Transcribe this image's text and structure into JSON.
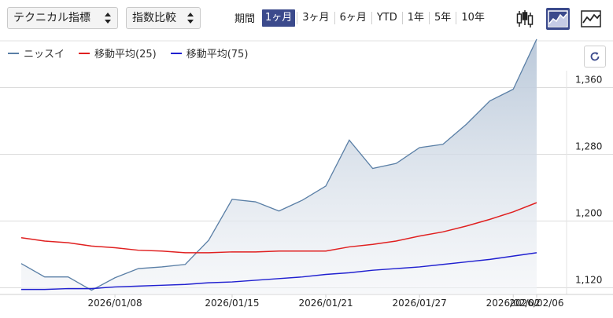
{
  "toolbar": {
    "technical_select": "テクニカル指標",
    "index_select": "指数比較",
    "period_label": "期間",
    "periods": [
      "1ヶ月",
      "3ヶ月",
      "6ヶ月",
      "YTD",
      "1年",
      "5年",
      "10年"
    ],
    "active_period": "1ヶ月",
    "chart_types": [
      "candlestick-icon",
      "area-chart-icon",
      "line-chart-icon"
    ],
    "active_chart_type": "area-chart-icon"
  },
  "legend": [
    {
      "name": "ニッスイ",
      "color": "#5a7fa6"
    },
    {
      "name": "移動平均(25)",
      "color": "#e02020"
    },
    {
      "name": "移動平均(75)",
      "color": "#2020d0"
    }
  ],
  "reload_icon": "refresh-icon",
  "chart_data": {
    "type": "area",
    "x_ticks": [
      "2026/01/08",
      "2026/01/15",
      "2026/01/21",
      "2026/01/27",
      "2026/02/02",
      "2026/02/06"
    ],
    "y_ticks": [
      "1,120",
      "1,200",
      "1,280",
      "1,360"
    ],
    "ylim": [
      1112,
      1416
    ],
    "grid": true,
    "series": [
      {
        "name": "ニッスイ",
        "color": "#5a7fa6",
        "values": [
          1149,
          1133,
          1133,
          1117,
          1132,
          1143,
          1145,
          1148,
          1177,
          1226,
          1223,
          1212,
          1225,
          1242,
          1297,
          1263,
          1269,
          1288,
          1292,
          1316,
          1344,
          1358,
          1418
        ]
      },
      {
        "name": "移動平均(25)",
        "color": "#e02020",
        "values": [
          1180,
          1176,
          1174,
          1170,
          1168,
          1165,
          1164,
          1162,
          1162,
          1163,
          1163,
          1164,
          1164,
          1164,
          1169,
          1172,
          1176,
          1182,
          1187,
          1194,
          1202,
          1211,
          1222
        ]
      },
      {
        "name": "移動平均(75)",
        "color": "#2020d0",
        "values": [
          1118,
          1118,
          1119,
          1119,
          1121,
          1122,
          1123,
          1124,
          1126,
          1127,
          1129,
          1131,
          1133,
          1136,
          1138,
          1141,
          1143,
          1145,
          1148,
          1151,
          1154,
          1158,
          1162
        ]
      }
    ]
  }
}
